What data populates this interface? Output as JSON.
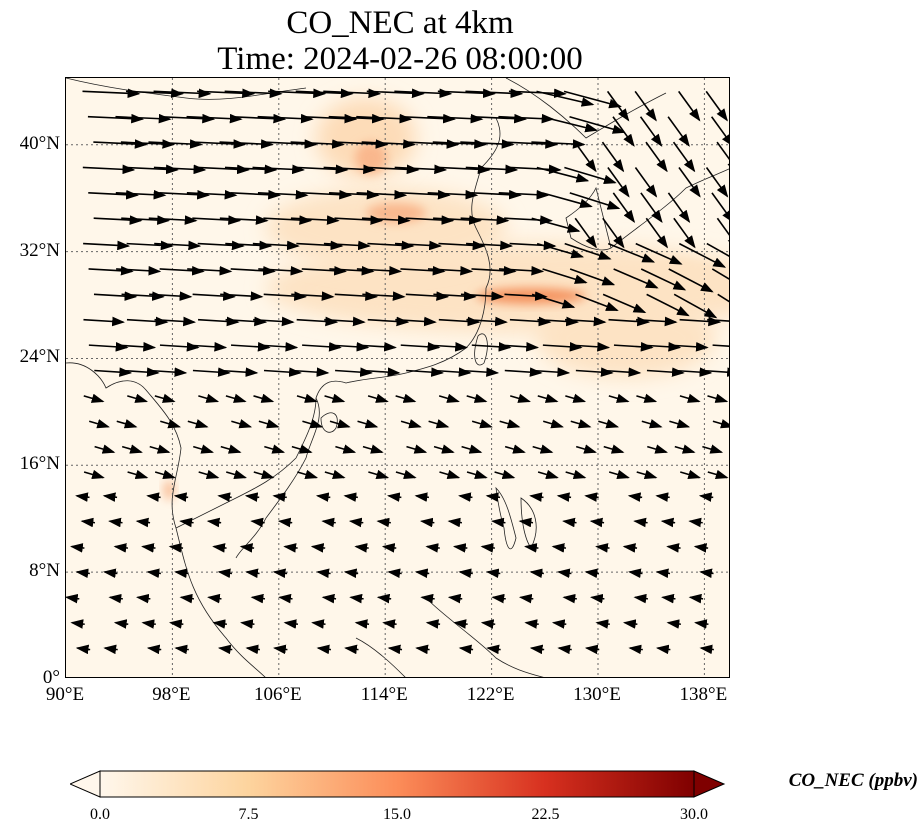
{
  "title": {
    "line1": "CO_NEC at 4km",
    "line2": "Time: 2024-02-26 08:00:00"
  },
  "map": {
    "projection": "PlateCarree",
    "lon_range": [
      90,
      140
    ],
    "lat_range": [
      0,
      45
    ],
    "x_ticks": [
      "90°E",
      "98°E",
      "106°E",
      "114°E",
      "122°E",
      "130°E",
      "138°E"
    ],
    "y_ticks": [
      "0°",
      "8°N",
      "16°N",
      "24°N",
      "32°N",
      "40°N"
    ],
    "gridlines": true,
    "coastlines": true,
    "wind_vectors": true,
    "plume_description_colors": {
      "background": "#fff7ea",
      "low": "#fde3c4",
      "mid": "#fbb483",
      "high": "#f4935f"
    }
  },
  "colorbar": {
    "label": "CO_NEC (ppbv)",
    "ticks": [
      "0.0",
      "7.5",
      "15.0",
      "22.5",
      "30.0"
    ],
    "min": 0,
    "max": 30,
    "colormap": "OrRd",
    "extend": "both"
  }
}
